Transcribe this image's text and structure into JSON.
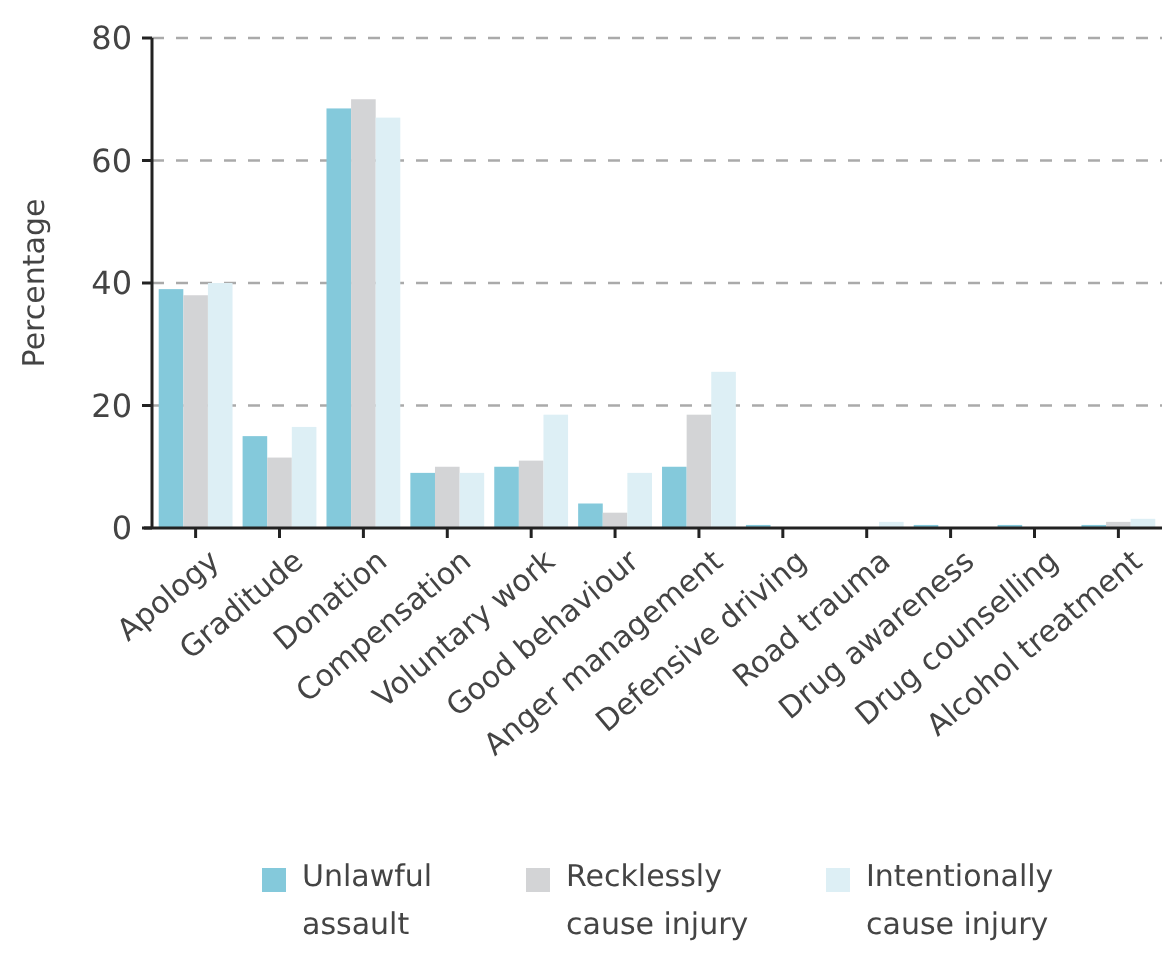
{
  "chart_data": {
    "type": "bar",
    "ylabel": "Percentage",
    "categories": [
      "Apology",
      "Graditude",
      "Donation",
      "Compensation",
      "Voluntary work",
      "Good behaviour",
      "Anger management",
      "Defensive driving",
      "Road trauma",
      "Drug awareness",
      "Drug counselling",
      "Alcohol treatment"
    ],
    "series": [
      {
        "name": "Unlawful assault",
        "color": "#84c9db",
        "values": [
          39,
          15,
          68.5,
          9,
          10,
          4,
          10,
          0.5,
          0,
          0.5,
          0.5,
          0.5
        ]
      },
      {
        "name": "Recklessly cause injury",
        "color": "#d3d4d6",
        "values": [
          38,
          11.5,
          70,
          10,
          11,
          2.5,
          18.5,
          0,
          0,
          0,
          0,
          1
        ]
      },
      {
        "name": "Intentionally cause injury",
        "color": "#ddeff5",
        "values": [
          40,
          16.5,
          67,
          9,
          18.5,
          9,
          25.5,
          0,
          1,
          0,
          0,
          1.5
        ]
      }
    ],
    "ylim": [
      0,
      80
    ],
    "yticks": [
      0,
      20,
      40,
      60,
      80
    ],
    "grid": "y",
    "legend": "bottom"
  }
}
